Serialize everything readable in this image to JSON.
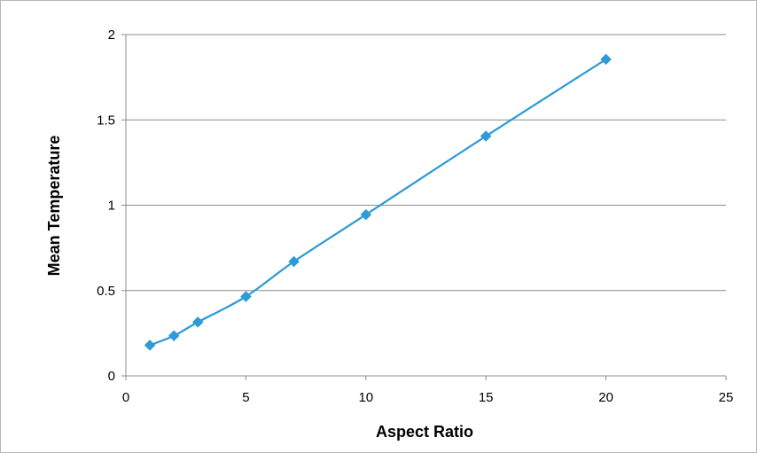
{
  "chart_data": {
    "type": "line",
    "title": "",
    "xlabel": "Aspect Ratio",
    "ylabel": "Mean Temperature",
    "xlim": [
      0,
      25
    ],
    "ylim": [
      0,
      2
    ],
    "xticks": [
      0,
      5,
      10,
      15,
      20,
      25
    ],
    "yticks": [
      0,
      0.5,
      1,
      1.5,
      2
    ],
    "xtick_labels": [
      "0",
      "5",
      "10",
      "15",
      "20",
      "25"
    ],
    "ytick_labels": [
      "0",
      "0.5",
      "1",
      "1.5",
      "2"
    ],
    "grid": "horizontal",
    "legend": "none",
    "series": [
      {
        "color": "#2e9bd6",
        "marker": "diamond",
        "smooth": true,
        "x": [
          1,
          2,
          3,
          5,
          7,
          10,
          15,
          20
        ],
        "y": [
          0.18,
          0.235,
          0.315,
          0.465,
          0.67,
          0.945,
          1.405,
          1.855
        ]
      }
    ]
  }
}
